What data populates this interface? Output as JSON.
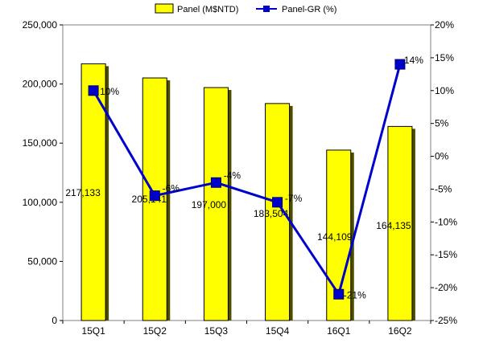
{
  "chart_data": {
    "type": "bar",
    "categories": [
      "15Q1",
      "15Q2",
      "15Q3",
      "15Q4",
      "16Q1",
      "16Q2"
    ],
    "series": [
      {
        "name": "Panel (M$NTD)",
        "type": "bar",
        "axis": "left",
        "values": [
          217133,
          205141,
          197000,
          183504,
          144109,
          164135
        ],
        "labels": [
          "217,133",
          "205,141",
          "197,000",
          "183,504",
          "144,109",
          "164,135"
        ],
        "color": "#ffff00"
      },
      {
        "name": "Panel-GR (%)",
        "type": "line",
        "axis": "right",
        "values": [
          10,
          -6,
          -4,
          -7,
          -21,
          14
        ],
        "labels": [
          "10%",
          "-6%",
          "-4%",
          "-7%",
          "-21%",
          "14%"
        ],
        "color": "#0000cc"
      }
    ],
    "y_left": {
      "min": 0,
      "max": 250000,
      "ticks": [
        0,
        50000,
        100000,
        150000,
        200000,
        250000
      ],
      "tick_labels": [
        "0",
        "50,000",
        "100,000",
        "150,000",
        "200,000",
        "250,000"
      ]
    },
    "y_right": {
      "min": -25,
      "max": 20,
      "ticks": [
        -25,
        -20,
        -15,
        -10,
        -5,
        0,
        5,
        10,
        15,
        20
      ],
      "tick_labels": [
        "-25%",
        "-20%",
        "-15%",
        "-10%",
        "-5%",
        "0%",
        "5%",
        "10%",
        "15%",
        "20%"
      ]
    },
    "legend_position": "top",
    "grid": false
  }
}
